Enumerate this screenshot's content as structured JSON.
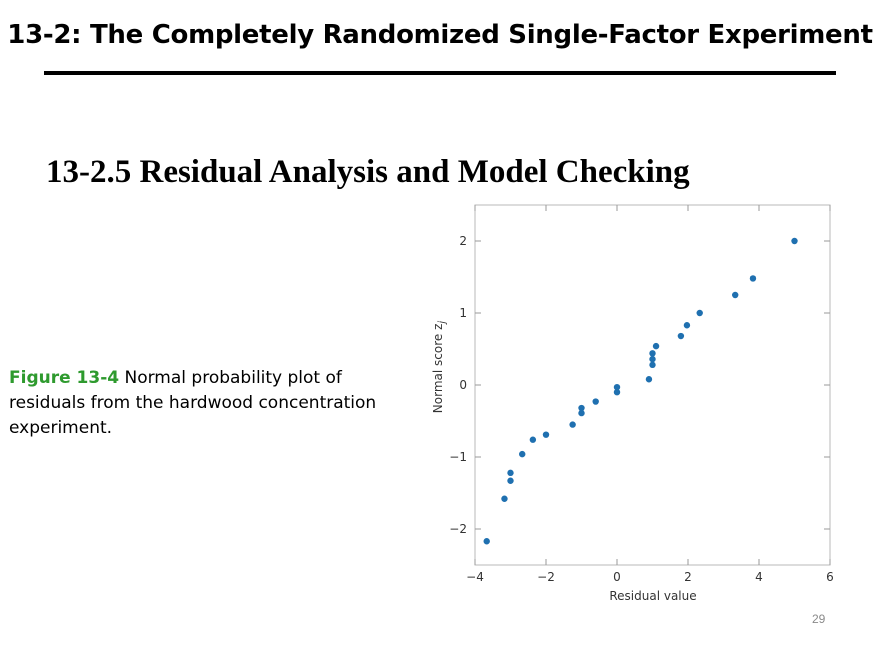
{
  "slide": {
    "title": "13-2: The Completely Randomized Single-Factor Experiment",
    "section_heading": "13-2.5 Residual Analysis and Model Checking",
    "caption_label": "Figure 13-4",
    "caption_text": " Normal probability plot of residuals from the hardwood concentration experiment.",
    "page_number": "29"
  },
  "chart_data": {
    "type": "scatter",
    "xlabel": "Residual value",
    "ylabel": "Normal score z_j",
    "xlim": [
      -4,
      6
    ],
    "ylim": [
      -2.5,
      2.5
    ],
    "x_ticks": [
      -4,
      -2,
      0,
      2,
      4,
      6
    ],
    "x_tick_labels": [
      "−4",
      "−2",
      "0",
      "2",
      "4",
      "6"
    ],
    "y_ticks": [
      2,
      1,
      0,
      -1,
      -2
    ],
    "y_tick_labels": [
      "2",
      "1",
      "0",
      "−1",
      "−2"
    ],
    "grid": false,
    "point_color": "#1f70b0",
    "points": [
      {
        "x": -3.67,
        "y": -2.17
      },
      {
        "x": -3.17,
        "y": -1.58
      },
      {
        "x": -3.0,
        "y": -1.33
      },
      {
        "x": -3.0,
        "y": -1.22
      },
      {
        "x": -2.67,
        "y": -0.96
      },
      {
        "x": -2.37,
        "y": -0.76
      },
      {
        "x": -2.0,
        "y": -0.69
      },
      {
        "x": -1.25,
        "y": -0.55
      },
      {
        "x": -1.0,
        "y": -0.39
      },
      {
        "x": -1.0,
        "y": -0.32
      },
      {
        "x": -0.6,
        "y": -0.23
      },
      {
        "x": 0.0,
        "y": -0.1
      },
      {
        "x": 0.0,
        "y": -0.03
      },
      {
        "x": 0.9,
        "y": 0.08
      },
      {
        "x": 1.0,
        "y": 0.28
      },
      {
        "x": 1.0,
        "y": 0.36
      },
      {
        "x": 1.0,
        "y": 0.44
      },
      {
        "x": 1.1,
        "y": 0.54
      },
      {
        "x": 1.8,
        "y": 0.68
      },
      {
        "x": 1.97,
        "y": 0.83
      },
      {
        "x": 2.33,
        "y": 1.0
      },
      {
        "x": 3.33,
        "y": 1.25
      },
      {
        "x": 3.83,
        "y": 1.48
      },
      {
        "x": 5.0,
        "y": 2.0
      }
    ]
  }
}
